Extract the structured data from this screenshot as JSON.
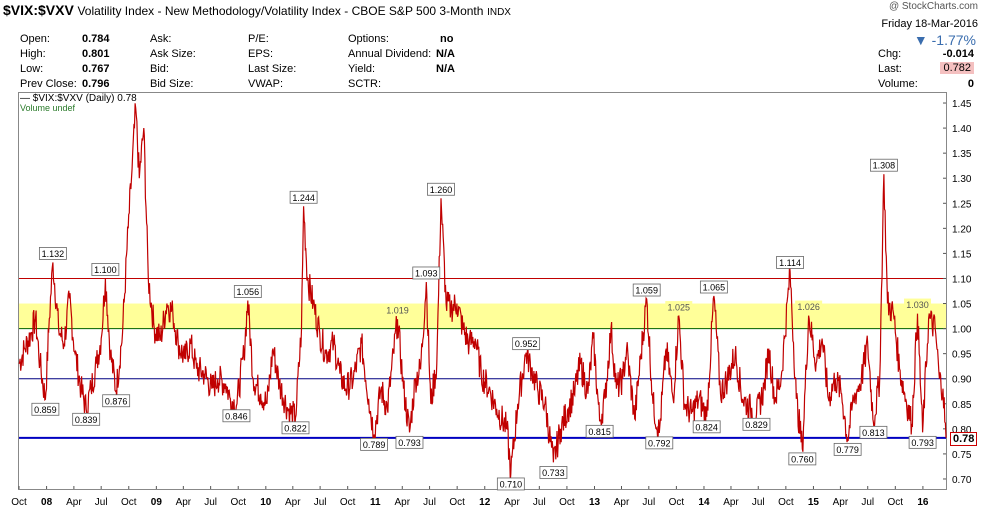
{
  "header": {
    "symbol": "$VIX:$VXV",
    "description": "Volatility Index - New Methodology/Volatility Index - CBOE S&P 500 3-Month",
    "exchange": "INDX",
    "brand": "@ StockCharts.com"
  },
  "stats": {
    "open_label": "Open:",
    "open": "0.784",
    "high_label": "High:",
    "high": "0.801",
    "low_label": "Low:",
    "low": "0.767",
    "prev_close_label": "Prev Close:",
    "prev_close": "0.796",
    "ask_label": "Ask:",
    "ask_size_label": "Ask Size:",
    "bid_label": "Bid:",
    "bid_size_label": "Bid Size:",
    "pe_label": "P/E:",
    "eps_label": "EPS:",
    "last_size_label": "Last Size:",
    "vwap_label": "VWAP:",
    "options_label": "Options:",
    "options": "no",
    "annual_dividend_label": "Annual Dividend:",
    "annual_dividend": "N/A",
    "yield_label": "Yield:",
    "yield": "N/A",
    "sctr_label": "SCTR:"
  },
  "quote": {
    "date": "Friday  18-Mar-2016",
    "change_pct": "▼ -1.77%",
    "chg_label": "Chg:",
    "chg": "-0.014",
    "last_label": "Last:",
    "last": "0.782",
    "volume_label": "Volume:",
    "volume": "0"
  },
  "legend": {
    "series": "— $VIX:$VXV (Daily) 0.78",
    "volume": "Volume undef"
  },
  "last_tag": "0.78",
  "colors": {
    "price_line": "#c00000",
    "up_tick": "#000000",
    "band": "#ffff99",
    "line_110": "#c00000",
    "line_100": "#006000",
    "line_090": "#000080",
    "line_078": "#0000c0"
  },
  "chart_data": {
    "type": "line",
    "title": "$VIX:$VXV (Daily)",
    "ylim": [
      0.68,
      1.47
    ],
    "y_ticks": [
      0.7,
      0.75,
      0.8,
      0.85,
      0.9,
      0.95,
      1.0,
      1.05,
      1.1,
      1.15,
      1.2,
      1.25,
      1.3,
      1.35,
      1.4,
      1.45
    ],
    "x_tick_labels": [
      "Oct",
      "08",
      "Apr",
      "Jul",
      "Oct",
      "09",
      "Apr",
      "Jul",
      "Oct",
      "10",
      "Apr",
      "Jul",
      "Oct",
      "11",
      "Apr",
      "Jul",
      "Oct",
      "12",
      "Apr",
      "Jul",
      "Oct",
      "13",
      "Apr",
      "Jul",
      "Oct",
      "14",
      "Apr",
      "Jul",
      "Oct",
      "15",
      "Apr",
      "Jul",
      "Oct",
      "16"
    ],
    "x_tick_years_bold": [
      "08",
      "09",
      "10",
      "11",
      "12",
      "13",
      "14",
      "15",
      "16"
    ],
    "x_range": [
      "2007-10-01",
      "2016-03-18"
    ],
    "reference_lines": [
      1.1,
      1.0,
      0.9,
      0.782
    ],
    "band": [
      1.0,
      1.05
    ],
    "series": [
      {
        "name": "$VIX:$VXV (Daily)",
        "points": [
          [
            "2007-10-01",
            0.93
          ],
          [
            "2007-10-20",
            0.96
          ],
          [
            "2007-11-10",
            0.99
          ],
          [
            "2007-11-25",
            1.02
          ],
          [
            "2007-12-10",
            0.93
          ],
          [
            "2007-12-28",
            0.859
          ],
          [
            "2008-01-10",
            1.02
          ],
          [
            "2008-01-22",
            1.132
          ],
          [
            "2008-02-10",
            1.0
          ],
          [
            "2008-02-28",
            0.97
          ],
          [
            "2008-03-17",
            1.06
          ],
          [
            "2008-04-05",
            0.95
          ],
          [
            "2008-04-25",
            0.88
          ],
          [
            "2008-05-12",
            0.839
          ],
          [
            "2008-05-28",
            0.88
          ],
          [
            "2008-06-15",
            0.93
          ],
          [
            "2008-07-01",
            0.98
          ],
          [
            "2008-07-15",
            1.1
          ],
          [
            "2008-08-01",
            0.95
          ],
          [
            "2008-08-20",
            0.876
          ],
          [
            "2008-09-10",
            0.99
          ],
          [
            "2008-09-29",
            1.2
          ],
          [
            "2008-10-10",
            1.3
          ],
          [
            "2008-10-24",
            1.44
          ],
          [
            "2008-11-05",
            1.3
          ],
          [
            "2008-11-20",
            1.4
          ],
          [
            "2008-12-05",
            1.1
          ],
          [
            "2008-12-25",
            1.0
          ],
          [
            "2009-01-15",
            0.98
          ],
          [
            "2009-02-05",
            1.05
          ],
          [
            "2009-02-25",
            1.03
          ],
          [
            "2009-03-15",
            0.97
          ],
          [
            "2009-04-05",
            0.94
          ],
          [
            "2009-04-25",
            0.97
          ],
          [
            "2009-05-15",
            0.92
          ],
          [
            "2009-06-10",
            0.91
          ],
          [
            "2009-07-05",
            0.88
          ],
          [
            "2009-07-25",
            0.9
          ],
          [
            "2009-08-20",
            0.89
          ],
          [
            "2009-09-05",
            0.86
          ],
          [
            "2009-09-25",
            0.846
          ],
          [
            "2009-10-20",
            0.95
          ],
          [
            "2009-11-02",
            1.056
          ],
          [
            "2009-11-20",
            0.9
          ],
          [
            "2009-12-15",
            0.87
          ],
          [
            "2010-01-05",
            0.85
          ],
          [
            "2010-01-25",
            0.96
          ],
          [
            "2010-02-15",
            0.89
          ],
          [
            "2010-03-15",
            0.84
          ],
          [
            "2010-04-10",
            0.822
          ],
          [
            "2010-04-30",
            1.0
          ],
          [
            "2010-05-07",
            1.244
          ],
          [
            "2010-05-20",
            1.1
          ],
          [
            "2010-06-08",
            1.05
          ],
          [
            "2010-06-30",
            0.99
          ],
          [
            "2010-07-20",
            0.95
          ],
          [
            "2010-08-15",
            0.97
          ],
          [
            "2010-09-05",
            0.91
          ],
          [
            "2010-09-25",
            0.88
          ],
          [
            "2010-10-20",
            0.9
          ],
          [
            "2010-11-16",
            0.97
          ],
          [
            "2010-12-10",
            0.86
          ],
          [
            "2010-12-28",
            0.789
          ],
          [
            "2011-01-20",
            0.88
          ],
          [
            "2011-02-10",
            0.84
          ],
          [
            "2011-03-16",
            1.019
          ],
          [
            "2011-04-05",
            0.88
          ],
          [
            "2011-04-25",
            0.793
          ],
          [
            "2011-05-15",
            0.9
          ],
          [
            "2011-06-01",
            0.92
          ],
          [
            "2011-06-20",
            1.093
          ],
          [
            "2011-07-05",
            0.85
          ],
          [
            "2011-07-25",
            0.93
          ],
          [
            "2011-08-08",
            1.26
          ],
          [
            "2011-08-25",
            1.05
          ],
          [
            "2011-09-10",
            1.04
          ],
          [
            "2011-09-30",
            1.05
          ],
          [
            "2011-10-20",
            1.0
          ],
          [
            "2011-11-10",
            0.97
          ],
          [
            "2011-11-30",
            0.98
          ],
          [
            "2011-12-20",
            0.91
          ],
          [
            "2012-01-15",
            0.88
          ],
          [
            "2012-02-10",
            0.84
          ],
          [
            "2012-03-15",
            0.8
          ],
          [
            "2012-03-28",
            0.71
          ],
          [
            "2012-04-20",
            0.85
          ],
          [
            "2012-05-18",
            0.952
          ],
          [
            "2012-06-05",
            0.92
          ],
          [
            "2012-06-25",
            0.88
          ],
          [
            "2012-07-20",
            0.85
          ],
          [
            "2012-08-17",
            0.733
          ],
          [
            "2012-09-10",
            0.8
          ],
          [
            "2012-10-05",
            0.84
          ],
          [
            "2012-10-25",
            0.87
          ],
          [
            "2012-11-15",
            0.93
          ],
          [
            "2012-12-10",
            0.87
          ],
          [
            "2012-12-28",
            0.98
          ],
          [
            "2013-01-18",
            0.815
          ],
          [
            "2013-02-05",
            0.86
          ],
          [
            "2013-02-25",
            1.0
          ],
          [
            "2013-03-15",
            0.88
          ],
          [
            "2013-04-05",
            0.9
          ],
          [
            "2013-04-18",
            0.96
          ],
          [
            "2013-05-15",
            0.82
          ],
          [
            "2013-06-05",
            0.95
          ],
          [
            "2013-06-24",
            1.059
          ],
          [
            "2013-07-15",
            0.85
          ],
          [
            "2013-08-05",
            0.792
          ],
          [
            "2013-08-28",
            0.96
          ],
          [
            "2013-09-20",
            0.86
          ],
          [
            "2013-10-09",
            1.025
          ],
          [
            "2013-10-28",
            0.85
          ],
          [
            "2013-11-20",
            0.83
          ],
          [
            "2013-12-15",
            0.86
          ],
          [
            "2014-01-10",
            0.824
          ],
          [
            "2014-02-03",
            1.065
          ],
          [
            "2014-02-25",
            0.87
          ],
          [
            "2014-03-20",
            0.9
          ],
          [
            "2014-04-15",
            0.95
          ],
          [
            "2014-05-10",
            0.86
          ],
          [
            "2014-06-05",
            0.84
          ],
          [
            "2014-06-25",
            0.829
          ],
          [
            "2014-07-20",
            0.88
          ],
          [
            "2014-08-05",
            0.96
          ],
          [
            "2014-08-25",
            0.86
          ],
          [
            "2014-09-15",
            0.9
          ],
          [
            "2014-10-15",
            1.114
          ],
          [
            "2014-11-05",
            0.86
          ],
          [
            "2014-11-25",
            0.76
          ],
          [
            "2014-12-16",
            1.026
          ],
          [
            "2015-01-10",
            0.93
          ],
          [
            "2015-01-30",
            0.98
          ],
          [
            "2015-02-20",
            0.86
          ],
          [
            "2015-03-15",
            0.9
          ],
          [
            "2015-04-05",
            0.87
          ],
          [
            "2015-04-25",
            0.779
          ],
          [
            "2015-05-15",
            0.86
          ],
          [
            "2015-06-10",
            0.9
          ],
          [
            "2015-07-01",
            0.97
          ],
          [
            "2015-07-20",
            0.813
          ],
          [
            "2015-08-10",
            0.9
          ],
          [
            "2015-08-24",
            1.308
          ],
          [
            "2015-09-05",
            1.05
          ],
          [
            "2015-09-25",
            1.03
          ],
          [
            "2015-10-15",
            0.92
          ],
          [
            "2015-11-05",
            0.86
          ],
          [
            "2015-11-25",
            0.81
          ],
          [
            "2015-12-14",
            1.03
          ],
          [
            "2015-12-31",
            0.793
          ],
          [
            "2016-01-20",
            1.02
          ],
          [
            "2016-02-11",
            1.0
          ],
          [
            "2016-02-25",
            0.9
          ],
          [
            "2016-03-08",
            0.88
          ],
          [
            "2016-03-18",
            0.782
          ]
        ]
      }
    ],
    "annotations": [
      {
        "date": "2007-12-28",
        "value": 0.859,
        "label": "0.859",
        "pos": "below"
      },
      {
        "date": "2008-01-22",
        "value": 1.132,
        "label": "1.132",
        "pos": "above"
      },
      {
        "date": "2008-05-12",
        "value": 0.839,
        "label": "0.839",
        "pos": "below"
      },
      {
        "date": "2008-07-15",
        "value": 1.1,
        "label": "1.100",
        "pos": "above"
      },
      {
        "date": "2008-08-20",
        "value": 0.876,
        "label": "0.876",
        "pos": "below"
      },
      {
        "date": "2009-09-25",
        "value": 0.846,
        "label": "0.846",
        "pos": "below"
      },
      {
        "date": "2009-11-02",
        "value": 1.056,
        "label": "1.056",
        "pos": "above"
      },
      {
        "date": "2010-04-10",
        "value": 0.822,
        "label": "0.822",
        "pos": "below"
      },
      {
        "date": "2010-05-07",
        "value": 1.244,
        "label": "1.244",
        "pos": "above"
      },
      {
        "date": "2010-12-28",
        "value": 0.789,
        "label": "0.789",
        "pos": "below"
      },
      {
        "date": "2011-03-16",
        "value": 1.019,
        "label": "1.019",
        "pos": "above",
        "band": true
      },
      {
        "date": "2011-04-25",
        "value": 0.793,
        "label": "0.793",
        "pos": "below"
      },
      {
        "date": "2011-06-20",
        "value": 1.093,
        "label": "1.093",
        "pos": "above"
      },
      {
        "date": "2011-08-08",
        "value": 1.26,
        "label": "1.260",
        "pos": "above"
      },
      {
        "date": "2012-03-28",
        "value": 0.71,
        "label": "0.710",
        "pos": "below"
      },
      {
        "date": "2012-05-18",
        "value": 0.952,
        "label": "0.952",
        "pos": "above"
      },
      {
        "date": "2012-08-17",
        "value": 0.733,
        "label": "0.733",
        "pos": "below"
      },
      {
        "date": "2013-01-18",
        "value": 0.815,
        "label": "0.815",
        "pos": "below"
      },
      {
        "date": "2013-06-24",
        "value": 1.059,
        "label": "1.059",
        "pos": "above"
      },
      {
        "date": "2013-08-05",
        "value": 0.792,
        "label": "0.792",
        "pos": "below"
      },
      {
        "date": "2013-10-09",
        "value": 1.025,
        "label": "1.025",
        "pos": "above",
        "band": true
      },
      {
        "date": "2014-01-10",
        "value": 0.824,
        "label": "0.824",
        "pos": "below"
      },
      {
        "date": "2014-02-03",
        "value": 1.065,
        "label": "1.065",
        "pos": "above"
      },
      {
        "date": "2014-06-25",
        "value": 0.829,
        "label": "0.829",
        "pos": "below"
      },
      {
        "date": "2014-10-15",
        "value": 1.114,
        "label": "1.114",
        "pos": "above"
      },
      {
        "date": "2014-11-25",
        "value": 0.76,
        "label": "0.760",
        "pos": "below"
      },
      {
        "date": "2014-12-16",
        "value": 1.026,
        "label": "1.026",
        "pos": "above",
        "band": true
      },
      {
        "date": "2015-04-25",
        "value": 0.779,
        "label": "0.779",
        "pos": "below"
      },
      {
        "date": "2015-07-20",
        "value": 0.813,
        "label": "0.813",
        "pos": "below"
      },
      {
        "date": "2015-08-24",
        "value": 1.308,
        "label": "1.308",
        "pos": "above"
      },
      {
        "date": "2015-12-14",
        "value": 1.03,
        "label": "1.030",
        "pos": "above",
        "band": true
      },
      {
        "date": "2015-12-31",
        "value": 0.793,
        "label": "0.793",
        "pos": "below"
      }
    ]
  }
}
